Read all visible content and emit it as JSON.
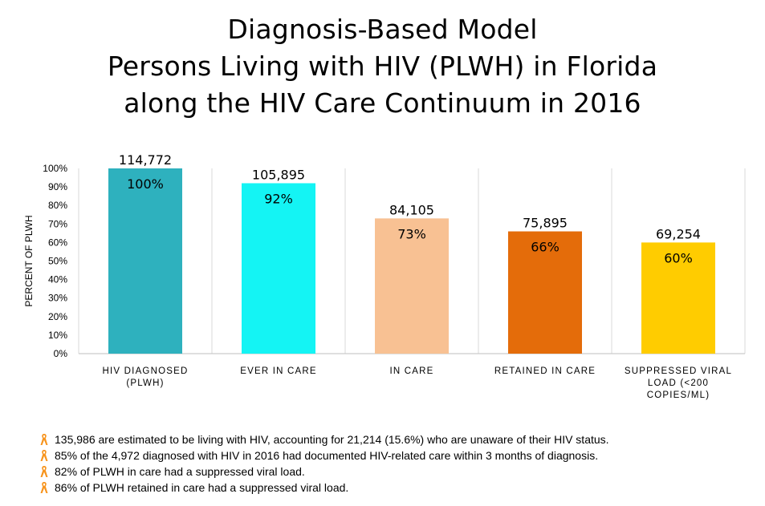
{
  "title_lines": [
    "Diagnosis-Based Model",
    "Persons Living with HIV (PLWH) in Florida",
    "along the HIV Care Continuum in 2016"
  ],
  "chart_data": {
    "type": "bar",
    "ylabel": "PERCENT OF PLWH",
    "ylim": [
      0,
      100
    ],
    "yticks": [
      "0%",
      "10%",
      "20%",
      "30%",
      "40%",
      "50%",
      "60%",
      "70%",
      "80%",
      "90%",
      "100%"
    ],
    "grid": "vertical-separators",
    "categories": [
      [
        "HIV DIAGNOSED",
        "(PLWH)"
      ],
      [
        "EVER IN CARE"
      ],
      [
        "IN CARE"
      ],
      [
        "RETAINED IN CARE"
      ],
      [
        "SUPPRESSED VIRAL",
        "LOAD (<200",
        "COPIES/ML)"
      ]
    ],
    "values": [
      100,
      92,
      73,
      66,
      60
    ],
    "percent_labels": [
      "100%",
      "92%",
      "73%",
      "66%",
      "60%"
    ],
    "count_labels": [
      "114,772",
      "105,895",
      "84,105",
      "75,895",
      "69,254"
    ],
    "colors": [
      "#2EB1BE",
      "#14F4F4",
      "#F8C193",
      "#E46C0A",
      "#FFCC00"
    ]
  },
  "notes": [
    "135,986 are estimated to be living with HIV, accounting for 21,214 (15.6%) who are unaware of their HIV status.",
    "85% of the 4,972 diagnosed with HIV in 2016 had documented HIV-related care within 3 months of diagnosis.",
    "82% of PLWH in care had a suppressed viral load.",
    "86% of PLWH retained in care had a suppressed viral load."
  ],
  "bullet_icon": "awareness-ribbon-icon",
  "bullet_color": "#F7941D"
}
